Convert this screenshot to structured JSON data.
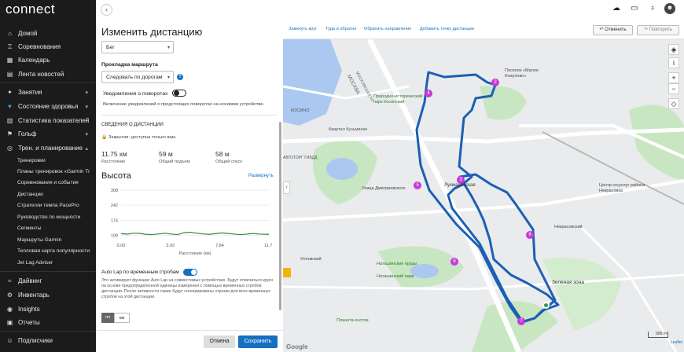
{
  "app": {
    "logo": "connect"
  },
  "sidebar": {
    "items": [
      {
        "label": "Домой",
        "icon": "home-icon"
      },
      {
        "label": "Соревнования",
        "icon": "trophy-icon"
      },
      {
        "label": "Календарь",
        "icon": "calendar-icon"
      },
      {
        "label": "Лента новостей",
        "icon": "newsfeed-icon"
      },
      {
        "label": "Занятия",
        "icon": "activities-icon"
      },
      {
        "label": "Состояние здоровья",
        "icon": "heart-icon"
      },
      {
        "label": "Статистика показателей",
        "icon": "chart-icon"
      },
      {
        "label": "Гольф",
        "icon": "golf-icon"
      },
      {
        "label": "Трен. и планирование",
        "icon": "training-icon"
      }
    ],
    "subitems": [
      "Тренировки",
      "Планы тренировок «Garmin Tr",
      "Соревнования и события",
      "Дистанции",
      "Стратегии темпа PacePro",
      "Руководство по мощности",
      "Сегменты",
      "Маршруты Garmin",
      "Тепловая карта популярности",
      "Jet Lag Adviser"
    ],
    "bottom": [
      {
        "label": "Дайвинг",
        "icon": "dive-icon"
      },
      {
        "label": "Инвентарь",
        "icon": "gear-icon"
      },
      {
        "label": "Insights",
        "icon": "insights-icon"
      },
      {
        "label": "Отчеты",
        "icon": "reports-icon"
      },
      {
        "label": "Подписчики",
        "icon": "followers-icon"
      }
    ]
  },
  "panel": {
    "title": "Изменить дистанцию",
    "activity_type": "Бег",
    "routing_label": "Прокладка маршрута",
    "routing_value": "Следовать по дорогам",
    "turn_notify_label": "Уведомления о поворотах",
    "turn_notify_desc": "Включение уведомлений о предстоящих поворотах на носимом устройстве.",
    "info_heading": "СВЕДЕНИЯ О ДИСТАНЦИИ",
    "privacy": "Закрытая: доступна только вам.",
    "stats": [
      {
        "value": "11.75 км",
        "label": "Расстояние"
      },
      {
        "value": "59 м",
        "label": "Общий подъем"
      },
      {
        "value": "58 м",
        "label": "Общий спуск"
      }
    ],
    "elevation_title": "Высота",
    "expand_link": "Развернуть",
    "autolap_label": "Auto Lap по временным стробам",
    "autolap_desc": "Это активирует функцию Auto Lap на совместимых устройствах. Будут отмечаться круги на основе предопределенной единицы измерения с помощью временных стробов дистанции. После активности также будут сгенерированы отрезки для всех временных стробов на этой дистанции.",
    "unit_mi": "mi",
    "unit_km": "км",
    "cancel": "Отмена",
    "save": "Сохранить"
  },
  "chart_data": {
    "type": "area",
    "title": "Высота",
    "xlabel": "Расстояние (км)",
    "ylabel": "",
    "x_ticks": [
      "0.00",
      "3.92",
      "7.84",
      "11.7"
    ],
    "y_ticks": [
      "308",
      "242",
      "174",
      "108"
    ],
    "xlim": [
      0,
      11.75
    ],
    "ylim": [
      100,
      308
    ],
    "series": [
      {
        "x": [
          0,
          0.5,
          1,
          1.5,
          2,
          2.5,
          3,
          3.5,
          4,
          4.5,
          5,
          5.5,
          6,
          6.5,
          7,
          7.5,
          8,
          8.5,
          9,
          9.5,
          10,
          10.5,
          11,
          11.75
        ],
        "values": [
          116,
          114,
          118,
          117,
          113,
          112,
          115,
          118,
          114,
          112,
          120,
          122,
          118,
          115,
          113,
          116,
          119,
          117,
          114,
          112,
          114,
          117,
          114,
          113
        ]
      }
    ]
  },
  "map": {
    "links": [
      "Замкнуть круг",
      "Туда и обратно",
      "Обратить направление",
      "Добавить точку дистанции"
    ],
    "undo": "Отменить",
    "redo": "Повторить",
    "labels": [
      "Природно-исторический парк Косинский",
      "Поселок «Малое Кожухово»",
      "МОСКОВСКАЯ УЛ",
      "МОСКВА",
      "Улица Дмитриевского",
      "Лухмановская",
      "Центр госуслуг района Некрасовка",
      "Некрасовский",
      "Ухтомский",
      "Наташинские пруды",
      "Наташинский парк",
      "Зеленая зона",
      "Планета енотов",
      "АВТОТОРГ ГИБДД",
      "Квартал Кузьминки",
      "КОСИНО"
    ],
    "markers": [
      "2",
      "3",
      "4",
      "5",
      "6",
      "7",
      "8"
    ],
    "scale": "500 m",
    "attribution": "Google",
    "leaflet": "Leaflet"
  },
  "colors": {
    "accent": "#1570c1",
    "route": "#1b5fb5",
    "marker": "#c638d8",
    "arrow": "#f3b500",
    "sidebar": "#1b1b1b"
  }
}
